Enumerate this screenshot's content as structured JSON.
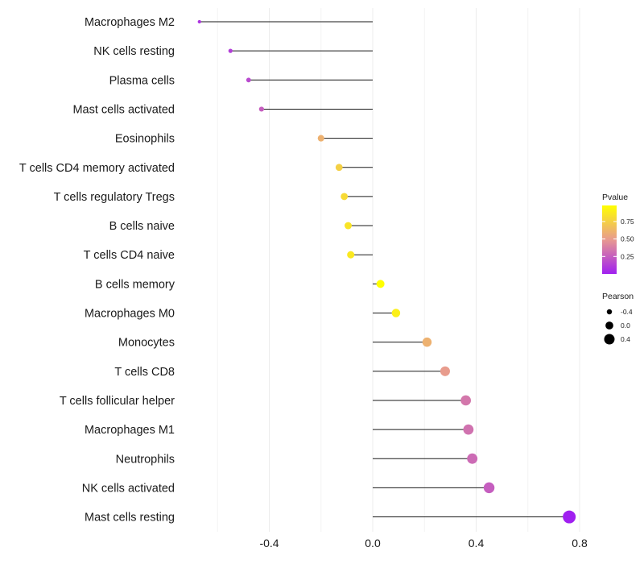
{
  "chart_data": {
    "type": "lollipop",
    "title": "",
    "xlabel": "",
    "ylabel": "",
    "xlim": [
      -0.7,
      0.8
    ],
    "xticks": [
      -0.4,
      0.0,
      0.4,
      0.8
    ],
    "xtick_labels": [
      "-0.4",
      "0.0",
      "0.4",
      "0.8"
    ],
    "categories": [
      "Macrophages M2",
      "NK cells resting",
      "Plasma cells",
      "Mast cells activated",
      "Eosinophils",
      "T cells CD4 memory activated",
      "T cells regulatory  Tregs ",
      "B cells naive",
      "T cells CD4 naive",
      "B cells memory",
      "Macrophages M0",
      "Monocytes",
      "T cells CD8",
      "T cells follicular helper",
      "Macrophages M1",
      "Neutrophils",
      "NK cells activated",
      "Mast cells resting"
    ],
    "pearson": [
      -0.67,
      -0.55,
      -0.48,
      -0.43,
      -0.2,
      -0.13,
      -0.11,
      -0.095,
      -0.085,
      0.03,
      0.09,
      0.21,
      0.28,
      0.36,
      0.37,
      0.385,
      0.45,
      0.76
    ],
    "pvalue": [
      0.08,
      0.12,
      0.17,
      0.25,
      0.6,
      0.75,
      0.8,
      0.85,
      0.87,
      0.98,
      0.9,
      0.6,
      0.5,
      0.35,
      0.33,
      0.3,
      0.25,
      0.0
    ],
    "legend": {
      "color_title": "Pvalue",
      "color_ticks": [
        0.25,
        0.5,
        0.75
      ],
      "color_tick_labels": [
        "0.25",
        "0.50",
        "0.75"
      ],
      "color_range": [
        0.0,
        0.98
      ],
      "color_low": "#a020f0",
      "color_mid": "#e89a90",
      "color_high": "#ffff00",
      "size_title": "Pearson",
      "size_values": [
        -0.4,
        0.0,
        0.4
      ],
      "size_labels": [
        "-0.4",
        "0.0",
        "0.4"
      ],
      "placement": "right"
    }
  }
}
